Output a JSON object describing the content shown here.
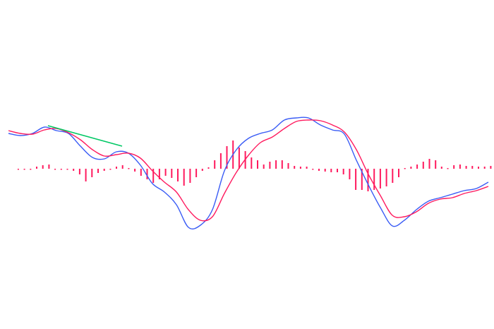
{
  "chart_data": {
    "type": "line",
    "title": "",
    "xlabel": "",
    "ylabel": "",
    "grid": false,
    "legend": "none",
    "x_range": [
      0,
      40
    ],
    "ylim": [
      -22.7,
      23.9
    ],
    "series": [
      {
        "kind": "line",
        "color": "#3a5cf5",
        "values": [
          5.0,
          4.7,
          5.0,
          5.9,
          5.4,
          5.0,
          3.2,
          1.6,
          1.4,
          2.4,
          2.2,
          0.5,
          -2.1,
          -3.3,
          -5.1,
          -8.3,
          -8.0,
          -5.8,
          -0.3,
          2.7,
          4.3,
          5.0,
          5.5,
          6.9,
          7.2,
          7.2,
          6.2,
          5.5,
          4.9,
          1.2,
          -2.3,
          -5.5,
          -8.1,
          -7.3,
          -5.8,
          -4.6,
          -4.1,
          -3.6,
          -3.1,
          -2.8,
          -1.9
        ]
      },
      {
        "kind": "line",
        "color": "#ff1a5e",
        "values": [
          5.4,
          5.0,
          4.9,
          5.5,
          5.7,
          5.1,
          4.1,
          2.7,
          1.8,
          2.0,
          2.2,
          1.5,
          -0.3,
          -1.9,
          -3.3,
          -5.8,
          -7.3,
          -6.8,
          -3.5,
          -0.5,
          1.9,
          3.7,
          4.5,
          5.7,
          6.7,
          6.9,
          6.8,
          6.2,
          5.2,
          2.7,
          -0.8,
          -3.8,
          -6.6,
          -6.8,
          -6.1,
          -4.9,
          -4.3,
          -4.1,
          -3.5,
          -3.1,
          -2.5
        ]
      },
      {
        "kind": "histogram",
        "color": "#ff1a5e",
        "x_start": 0.82,
        "x_end": 40.2,
        "values": [
          -0.1,
          -0.1,
          0,
          0.3,
          0.5,
          0.6,
          -0.1,
          -0.1,
          -0.1,
          -0.3,
          -0.8,
          -1.8,
          -1.2,
          -0.6,
          -0.3,
          -0.1,
          0.3,
          0.5,
          0.1,
          -0.4,
          -1.0,
          -1.5,
          -2.0,
          -1.5,
          -1.0,
          -1.3,
          -1.8,
          -2.4,
          -2.0,
          -1.2,
          -0.3,
          0.2,
          1.2,
          2.2,
          3.2,
          4.0,
          3.0,
          2.5,
          1.6,
          1.2,
          0.6,
          1.0,
          1.2,
          1.2,
          0.8,
          0.4,
          0.3,
          0.3,
          -0.1,
          -0.3,
          -0.4,
          -0.5,
          -0.5,
          -0.8,
          -1.5,
          -3.0,
          -3.0,
          -3.2,
          -3.0,
          -2.8,
          -2.5,
          -2.0,
          -1.2,
          0.1,
          0.3,
          0.6,
          1.0,
          1.4,
          1.2,
          0.3,
          0.1,
          0.5,
          0.6,
          0.4,
          0.4,
          0.3,
          0.3,
          0.4
        ]
      }
    ],
    "annotations": [
      {
        "kind": "trendline",
        "color": "#00c864",
        "from": [
          3.29,
          6.1
        ],
        "to": [
          9.47,
          3.2
        ]
      }
    ]
  }
}
